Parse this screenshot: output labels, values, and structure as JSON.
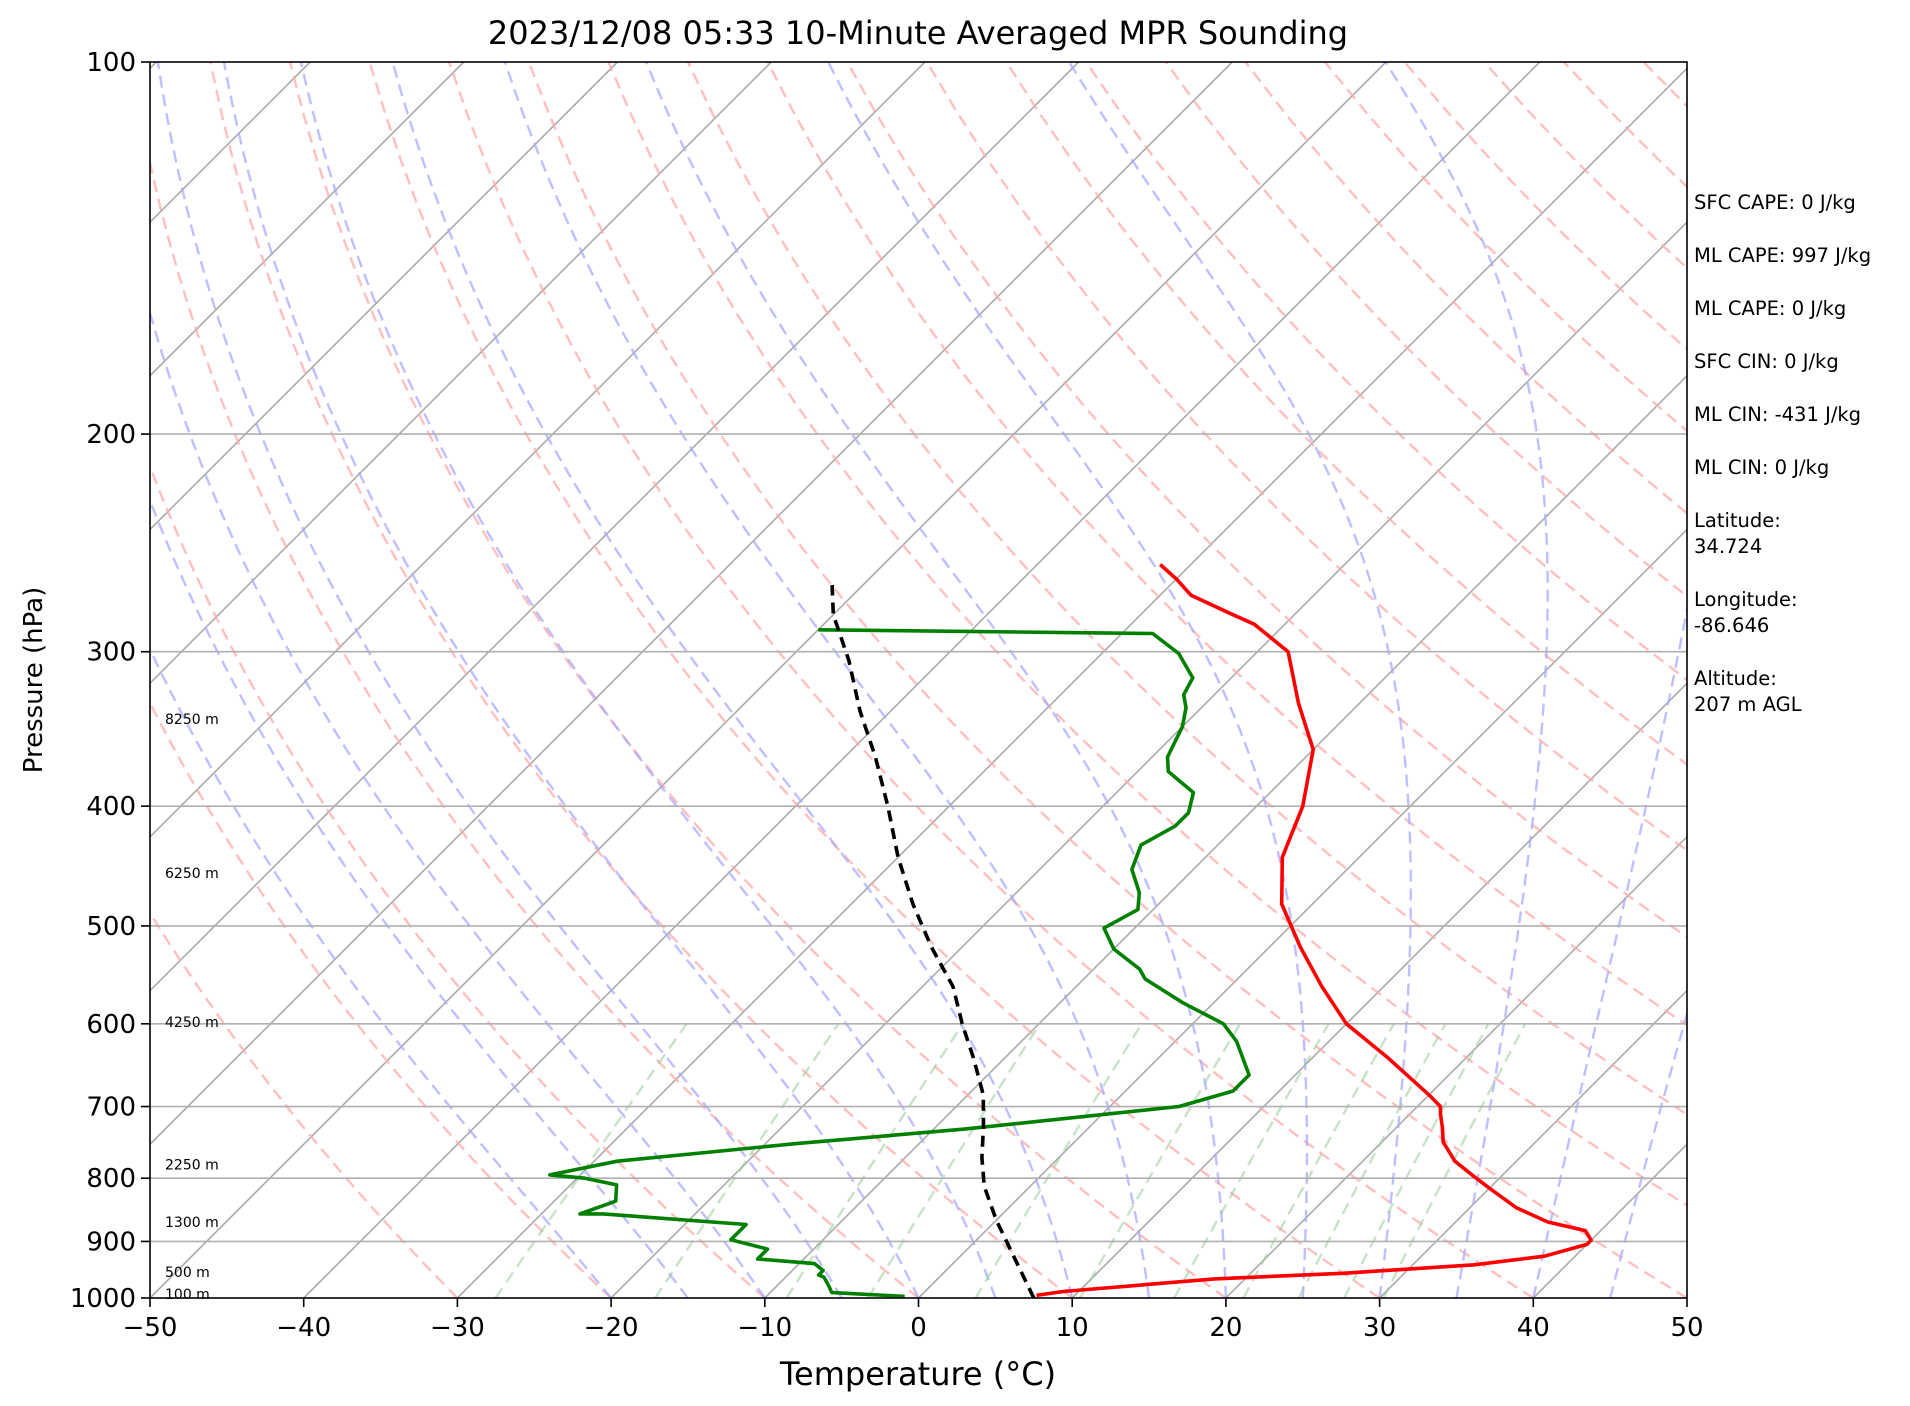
{
  "chart_data": {
    "type": "line",
    "title": "2023/12/08 05:33 10-Minute Averaged MPR Sounding",
    "xlabel": "Temperature (°C)",
    "ylabel": "Pressure (hPa)",
    "xlim": [
      -50,
      50
    ],
    "ylim": [
      1000,
      100
    ],
    "y_scale": "log",
    "skew": "skew-T log-p",
    "grid": true,
    "x_ticks": [
      "−50",
      "−40",
      "−30",
      "−20",
      "−10",
      "0",
      "10",
      "20",
      "30",
      "40",
      "50"
    ],
    "x_tick_values": [
      -50,
      -40,
      -30,
      -20,
      -10,
      0,
      10,
      20,
      30,
      40,
      50
    ],
    "y_ticks": [
      "100",
      "200",
      "300",
      "400",
      "500",
      "600",
      "700",
      "800",
      "900",
      "1000"
    ],
    "y_tick_values": [
      100,
      200,
      300,
      400,
      500,
      600,
      700,
      800,
      900,
      1000
    ],
    "series": [
      {
        "role": "temperature",
        "color": "#ff0000",
        "points": [
          [
            7.5,
            995
          ],
          [
            9,
            988
          ],
          [
            18,
            965
          ],
          [
            26,
            955
          ],
          [
            34,
            940
          ],
          [
            38,
            925
          ],
          [
            40,
            905
          ],
          [
            40,
            898
          ],
          [
            39,
            882
          ],
          [
            36,
            868
          ],
          [
            33,
            845
          ],
          [
            30,
            815
          ],
          [
            28,
            795
          ],
          [
            26,
            775
          ],
          [
            24,
            748
          ],
          [
            23,
            728
          ],
          [
            22,
            710
          ],
          [
            21.5,
            700
          ],
          [
            20,
            685
          ],
          [
            15,
            640
          ],
          [
            10,
            600
          ],
          [
            6,
            560
          ],
          [
            2,
            520
          ],
          [
            -2,
            480
          ],
          [
            -5,
            440
          ],
          [
            -7,
            400
          ],
          [
            -10,
            360
          ],
          [
            -14,
            330
          ],
          [
            -18,
            300
          ],
          [
            -22,
            285
          ],
          [
            -24,
            280
          ],
          [
            -28,
            270
          ],
          [
            -30,
            262
          ],
          [
            -32,
            255
          ]
        ]
      },
      {
        "role": "dewpoint",
        "color": "#008000",
        "points": [
          [
            -1,
            997
          ],
          [
            -6,
            990
          ],
          [
            -6.5,
            980
          ],
          [
            -7.5,
            962
          ],
          [
            -8,
            958
          ],
          [
            -8,
            950
          ],
          [
            -9,
            938
          ],
          [
            -13,
            930
          ],
          [
            -13,
            913
          ],
          [
            -16,
            897
          ],
          [
            -16,
            872
          ],
          [
            -26,
            855
          ],
          [
            -27.5,
            855
          ],
          [
            -26,
            835
          ],
          [
            -27,
            810
          ],
          [
            -29.5,
            800
          ],
          [
            -32,
            795
          ],
          [
            -28.5,
            775
          ],
          [
            -18,
            750
          ],
          [
            -8,
            730
          ],
          [
            4.5,
            700
          ],
          [
            7,
            680
          ],
          [
            7,
            660
          ],
          [
            4,
            620
          ],
          [
            2,
            600
          ],
          [
            -2,
            577
          ],
          [
            -6,
            552
          ],
          [
            -7,
            542
          ],
          [
            -10,
            522
          ],
          [
            -12,
            502
          ],
          [
            -11,
            485
          ],
          [
            -12,
            470
          ],
          [
            -14,
            450
          ],
          [
            -15,
            430
          ],
          [
            -14,
            415
          ],
          [
            -14,
            405
          ],
          [
            -15,
            390
          ],
          [
            -18,
            375
          ],
          [
            -19,
            365
          ],
          [
            -20,
            345
          ],
          [
            -21,
            333
          ],
          [
            -22,
            325
          ],
          [
            -22.5,
            315
          ],
          [
            -25,
            301
          ],
          [
            -28,
            290
          ],
          [
            -50,
            288
          ]
        ]
      },
      {
        "role": "parcel",
        "color": "#000000",
        "style": "dashed",
        "points": [
          [
            7.5,
            1000
          ],
          [
            0,
            865
          ],
          [
            -3,
            812
          ],
          [
            -5,
            770
          ],
          [
            -7,
            725
          ],
          [
            -9,
            685
          ],
          [
            -12,
            640
          ],
          [
            -15,
            600
          ],
          [
            -18,
            560
          ],
          [
            -22,
            520
          ],
          [
            -26,
            480
          ],
          [
            -30,
            440
          ],
          [
            -34,
            400
          ],
          [
            -38,
            365
          ],
          [
            -42,
            335
          ],
          [
            -46,
            305
          ],
          [
            -50,
            280
          ],
          [
            -52,
            265
          ]
        ]
      }
    ],
    "height_labels": [
      {
        "label": "8250 m",
        "p": 340
      },
      {
        "label": "6250 m",
        "p": 453
      },
      {
        "label": "4250 m",
        "p": 598
      },
      {
        "label": "2250 m",
        "p": 780
      },
      {
        "label": "1300 m",
        "p": 868
      },
      {
        "label": "500 m",
        "p": 953
      },
      {
        "label": "100 m",
        "p": 993
      }
    ],
    "background_lines": {
      "isotherm_color": "#aaaaaa",
      "dry_adiabat_color": "#ffaaaa",
      "moist_adiabat_color": "#aaaaff",
      "mixing_ratio_color": "#99cc99"
    }
  },
  "info_panel": {
    "sfc_cape": "SFC CAPE: 0 J/kg",
    "ml_cape_1": "ML CAPE: 997 J/kg",
    "ml_cape_2": "ML CAPE: 0 J/kg",
    "sfc_cin": "SFC CIN: 0 J/kg",
    "ml_cin_1": "ML CIN: -431 J/kg",
    "ml_cin_2": "ML CIN: 0 J/kg",
    "latitude_label": "Latitude:",
    "latitude_value": "34.724",
    "longitude_label": "Longitude:",
    "longitude_value": "-86.646",
    "altitude_label": "Altitude:",
    "altitude_value": "207 m AGL"
  }
}
